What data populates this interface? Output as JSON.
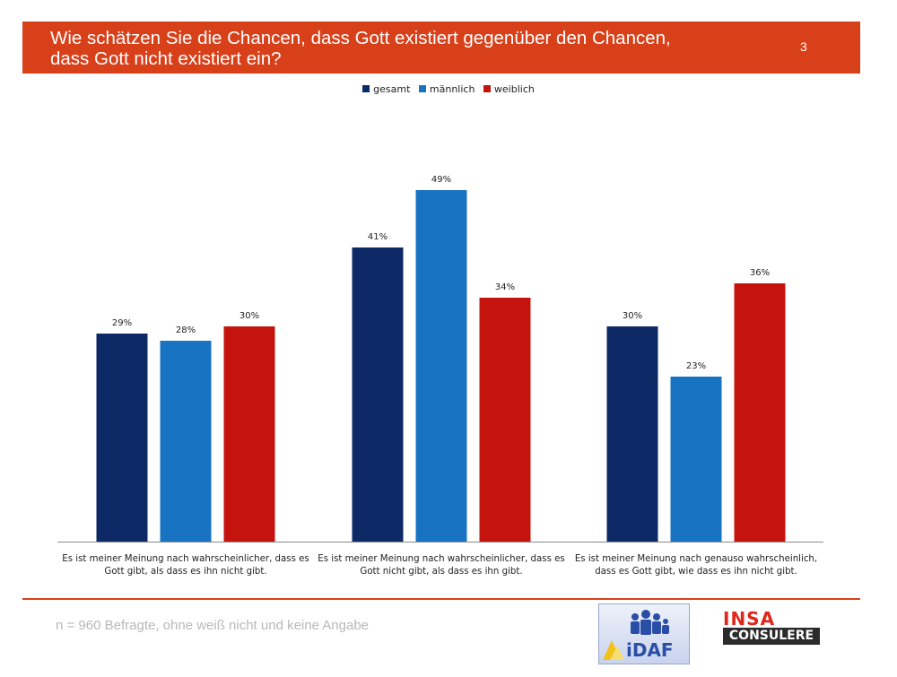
{
  "header": {
    "title": "Wie schätzen Sie die Chancen, dass Gott existiert gegenüber den Chancen,\ndass Gott nicht existiert ein?",
    "page_number": "3"
  },
  "colors": {
    "header_bg": "#d8401a",
    "gesamt": "#0d2a66",
    "maennlich": "#1874c3",
    "weiblich": "#c4140d"
  },
  "chart_data": {
    "type": "bar",
    "categories": [
      [
        "Es ist meiner Meinung nach wahrscheinlicher, dass es",
        "Gott gibt, als dass es ihn nicht gibt."
      ],
      [
        "Es ist meiner Meinung nach wahrscheinlicher, dass es",
        "Gott nicht gibt, als dass es ihn gibt."
      ],
      [
        "Es ist meiner Meinung nach genauso wahrscheinlich,",
        "dass es Gott gibt, wie dass es ihn nicht gibt."
      ]
    ],
    "series": [
      {
        "name": "gesamt",
        "color": "#0d2a66",
        "values": [
          29,
          41,
          30
        ]
      },
      {
        "name": "männlich",
        "color": "#1874c3",
        "values": [
          28,
          49,
          23
        ]
      },
      {
        "name": "weiblich",
        "color": "#c4140d",
        "values": [
          30,
          34,
          36
        ]
      }
    ],
    "value_suffix": "%",
    "ylim": [
      0,
      60
    ],
    "grid": false,
    "legend_position": "top-center"
  },
  "footer": {
    "note": "n = 960 Befragte, ohne weiß nicht und keine Angabe",
    "logo_idaf": "iDAF",
    "logo_insa_top": "INSA",
    "logo_insa_bottom": "CONSULERE"
  }
}
